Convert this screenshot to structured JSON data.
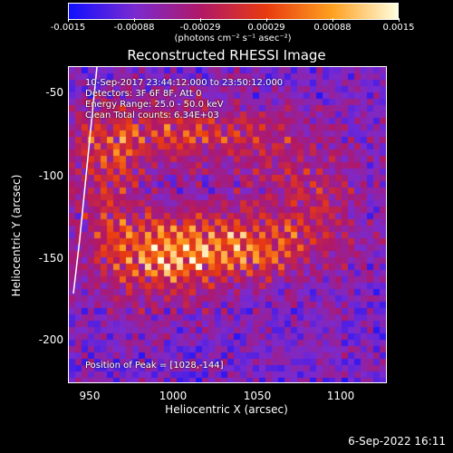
{
  "colorbar": {
    "ticks": [
      "-0.0015",
      "-0.00088",
      "-0.00029",
      "0.00029",
      "0.00088",
      "0.0015"
    ],
    "units": "(photons cm⁻² s⁻¹ asec⁻²)",
    "colors": [
      "#1010ff",
      "#7a2ad0",
      "#b01868",
      "#e83a10",
      "#ffa020",
      "#ffffe0"
    ]
  },
  "title": "Reconstructed RHESSI Image",
  "info": {
    "time_range": "10-Sep-2017 23:44:12.000 to 23:50:12.000",
    "detectors": "Detectors: 3F 6F 8F, Att 0",
    "energy_range": "Energy Range: 25.0 - 50.0 keV",
    "clean": "Clean    Total counts: 6.34E+03",
    "peak": "Position of Peak = [1028,-144]"
  },
  "axes": {
    "xlabel": "Heliocentric X (arcsec)",
    "ylabel": "Heliocentric Y (arcsec)",
    "xticks": [
      "950",
      "1000",
      "1050",
      "1100"
    ],
    "yticks": [
      "-50",
      "-100",
      "-150",
      "-200"
    ]
  },
  "timestamp": "6-Sep-2022 16:11",
  "chart_data": {
    "type": "heatmap",
    "title": "Reconstructed RHESSI Image",
    "xlabel": "Heliocentric X (arcsec)",
    "ylabel": "Heliocentric Y (arcsec)",
    "xlim": [
      937,
      1127
    ],
    "ylim": [
      -226,
      -37
    ],
    "xticks": [
      950,
      1000,
      1050,
      1100
    ],
    "yticks": [
      -50,
      -100,
      -150,
      -200
    ],
    "colorbar_range": [
      -0.0015,
      0.0015
    ],
    "colorbar_ticks": [
      -0.0015,
      -0.00088,
      -0.00029,
      0.00029,
      0.00088,
      0.0015
    ],
    "peak_position": [
      1028,
      -144
    ],
    "total_counts": 6340,
    "energy_range_keV": [
      25.0,
      50.0
    ],
    "detectors": [
      "3F",
      "6F",
      "8F"
    ],
    "attenuator": 0
  }
}
